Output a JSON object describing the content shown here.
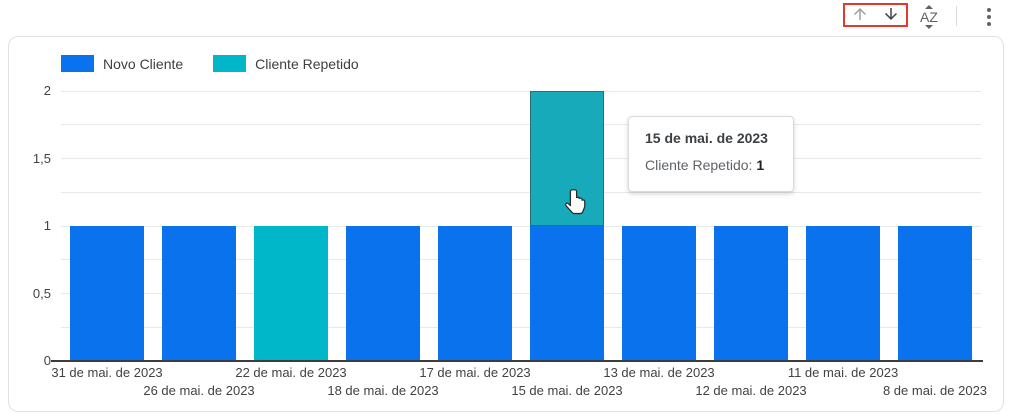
{
  "toolbar": {
    "selection_color": "#e4372e",
    "buttons": [
      {
        "name": "move-up",
        "icon": "arrow-up-icon"
      },
      {
        "name": "move-down",
        "icon": "arrow-down-icon"
      },
      {
        "name": "sort-alphabetical",
        "icon": "az-sort-icon",
        "letters": "AZ"
      },
      {
        "name": "more-options",
        "icon": "kebab-menu-icon"
      }
    ]
  },
  "tooltip": {
    "title": "15 de mai. de 2023",
    "series_label": "Cliente Repetido:",
    "value": "1"
  },
  "y_axis": {
    "ticks": [
      {
        "label": "2",
        "value": 2
      },
      {
        "label": "1,5",
        "value": 1.5
      },
      {
        "label": "1",
        "value": 1
      },
      {
        "label": "0,5",
        "value": 0.5
      },
      {
        "label": "0",
        "value": 0
      }
    ]
  },
  "hover": {
    "category_index": 5,
    "series": "Cliente Repetido",
    "hover_fill": "#16aaba"
  },
  "chart_data": {
    "type": "bar",
    "stacked": true,
    "title": "",
    "categories": [
      "31 de mai. de 2023",
      "26 de mai. de 2023",
      "22 de mai. de 2023",
      "18 de mai. de 2023",
      "17 de mai. de 2023",
      "15 de mai. de 2023",
      "13 de mai. de 2023",
      "12 de mai. de 2023",
      "11 de mai. de 2023",
      "8 de mai. de 2023"
    ],
    "series": [
      {
        "name": "Novo Cliente",
        "color": "#0b72ed",
        "values": [
          1,
          1,
          0,
          1,
          1,
          1,
          1,
          1,
          1,
          1
        ]
      },
      {
        "name": "Cliente Repetido",
        "color": "#00b6c9",
        "values": [
          0,
          0,
          1,
          0,
          0,
          1,
          0,
          0,
          0,
          0
        ]
      }
    ],
    "ylim": [
      0,
      2
    ],
    "grid_step": 0.25,
    "y_tick_step": 0.5,
    "legend_position": "top-left",
    "x_label_rows": 2
  }
}
